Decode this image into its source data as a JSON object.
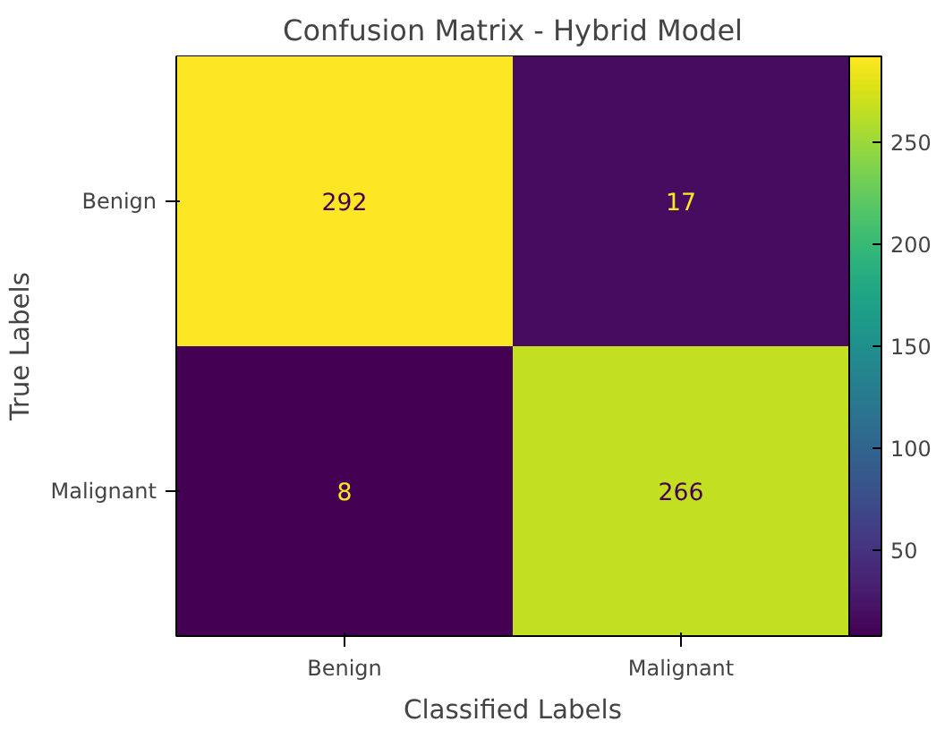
{
  "chart_data": {
    "type": "heatmap",
    "title": "Confusion Matrix - Hybrid Model",
    "xlabel": "Classified Labels",
    "ylabel": "True Labels",
    "categories": [
      "Benign",
      "Malignant"
    ],
    "y_categories": [
      "Benign",
      "Malignant"
    ],
    "cells": [
      [
        292,
        17
      ],
      [
        8,
        266
      ]
    ],
    "clim": [
      8,
      292
    ],
    "cticks": [
      50,
      100,
      150,
      200,
      250
    ],
    "data_labels": true
  }
}
